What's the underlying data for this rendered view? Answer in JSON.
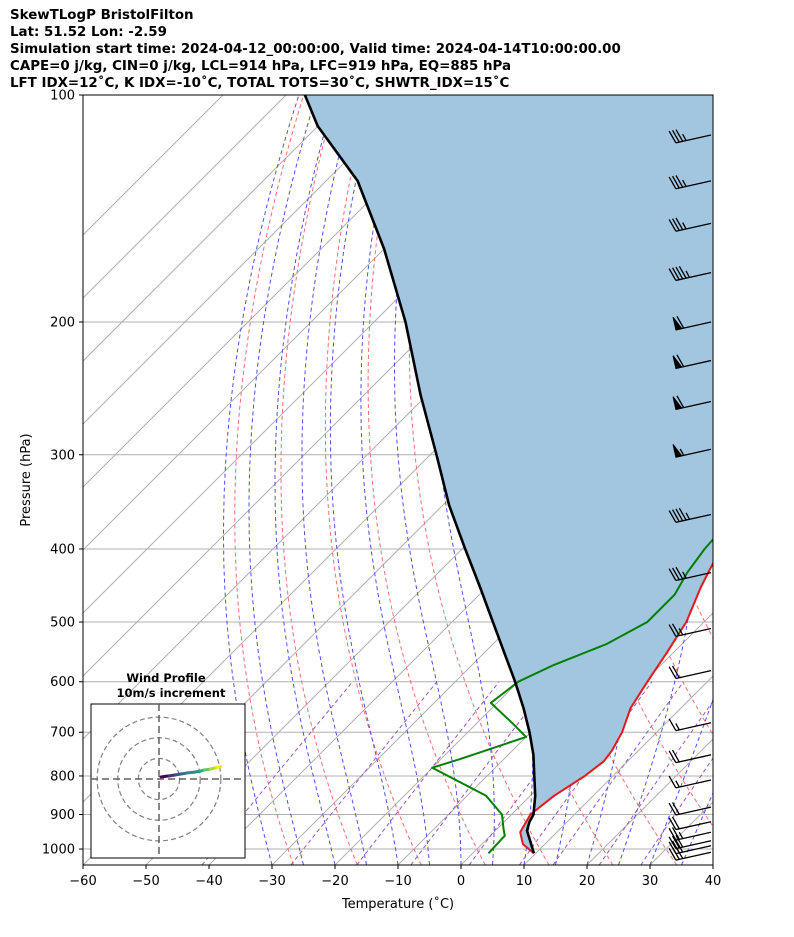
{
  "header": {
    "line1": "SkewTLogP BristolFilton",
    "line2": "Lat: 51.52   Lon: -2.59",
    "line3": "Simulation start time: 2024-04-12_00:00:00, Valid time: 2024-04-14T10:00:00.00",
    "line4": "CAPE=0 j/kg, CIN=0 j/kg, LCL=914 hPa, LFC=919 hPa, EQ=885 hPa",
    "line5": "LFT IDX=12˚C, K IDX=-10˚C, TOTAL TOTS=30˚C, SHWTR_IDX=15˚C"
  },
  "chart_data": {
    "type": "line",
    "xlabel": "Temperature (˚C)",
    "ylabel": "Pressure (hPa)",
    "xlim": [
      -60,
      40
    ],
    "ylim": [
      1050,
      100
    ],
    "yscale": "log",
    "skew": true,
    "grid": true,
    "xticks": [
      -60,
      -50,
      -40,
      -30,
      -20,
      -10,
      0,
      10,
      20,
      30,
      40
    ],
    "yticks": [
      100,
      200,
      300,
      400,
      500,
      600,
      700,
      800,
      900,
      1000
    ],
    "colors": {
      "temperature": "#e31a1c",
      "dewpoint": "#008000",
      "parcel": "#000000",
      "shade": "#a3c6e0",
      "dry_adiabat": "#f07070",
      "moist_adiabat": "#5050f0",
      "isotherm": "#b0b0b0",
      "mixing_ratio": "#9955cc"
    },
    "series": [
      {
        "key": "temperature",
        "points": [
          [
            9.7,
            1013
          ],
          [
            6.5,
            985
          ],
          [
            4.2,
            950
          ],
          [
            3.0,
            900
          ],
          [
            3.8,
            850
          ],
          [
            5.5,
            800
          ],
          [
            6.2,
            765
          ],
          [
            5.8,
            740
          ],
          [
            4.5,
            700
          ],
          [
            2.0,
            650
          ],
          [
            0.5,
            600
          ],
          [
            -1.0,
            550
          ],
          [
            -2.8,
            500
          ],
          [
            -6.0,
            450
          ],
          [
            -9.0,
            400
          ],
          [
            -9.5,
            370
          ],
          [
            -10.7,
            330
          ],
          [
            -12.5,
            290
          ],
          [
            -12.8,
            270
          ],
          [
            -11.0,
            256
          ],
          [
            -9.0,
            240
          ],
          [
            -9.3,
            228
          ],
          [
            -7.0,
            215
          ],
          [
            -4.5,
            200
          ],
          [
            -0.5,
            185
          ],
          [
            2.5,
            170
          ],
          [
            5.5,
            155
          ],
          [
            8.5,
            140
          ],
          [
            10.3,
            130
          ],
          [
            11.5,
            120
          ],
          [
            14.0,
            112
          ],
          [
            16.2,
            104
          ],
          [
            16.8,
            100
          ]
        ]
      },
      {
        "key": "dewpoint",
        "points": [
          [
            2.5,
            1013
          ],
          [
            2.3,
            960
          ],
          [
            1.0,
            940
          ],
          [
            -1.5,
            900
          ],
          [
            -7.0,
            850
          ],
          [
            -20.0,
            780
          ],
          [
            -17.0,
            760
          ],
          [
            -10.0,
            710
          ],
          [
            -14.5,
            680
          ],
          [
            -21.0,
            640
          ],
          [
            -20.0,
            600
          ],
          [
            -17.0,
            570
          ],
          [
            -12.0,
            535
          ],
          [
            -9.0,
            500
          ],
          [
            -9.0,
            460
          ],
          [
            -10.5,
            430
          ],
          [
            -11.5,
            400
          ],
          [
            -12.0,
            370
          ],
          [
            -13.0,
            340
          ],
          [
            -15.0,
            300
          ],
          [
            -16.0,
            275
          ],
          [
            -17.0,
            260
          ],
          [
            -19.5,
            248
          ],
          [
            -21.0,
            235
          ],
          [
            -21.5,
            228
          ],
          [
            -21.0,
            218
          ],
          [
            -22.5,
            205
          ],
          [
            -24.0,
            195
          ],
          [
            -25.5,
            180
          ],
          [
            -26.0,
            168
          ],
          [
            -24.5,
            160
          ],
          [
            -21.0,
            148
          ],
          [
            -17.5,
            135
          ],
          [
            -14.0,
            122
          ],
          [
            -10.5,
            112
          ],
          [
            -7.5,
            105
          ],
          [
            -5.5,
            100
          ]
        ]
      },
      {
        "key": "parcel",
        "points": [
          [
            9.7,
            1013
          ],
          [
            5.0,
            945
          ],
          [
            4.0,
            920
          ],
          [
            3.5,
            900
          ],
          [
            0.8,
            850
          ],
          [
            -2.5,
            800
          ],
          [
            -6.0,
            750
          ],
          [
            -10.2,
            700
          ],
          [
            -15.0,
            650
          ],
          [
            -20.5,
            600
          ],
          [
            -26.7,
            550
          ],
          [
            -33.5,
            500
          ],
          [
            -41.0,
            450
          ],
          [
            -49.5,
            400
          ],
          [
            -59.0,
            350
          ],
          [
            -69.0,
            300
          ],
          [
            -81.0,
            250
          ],
          [
            -95.0,
            200
          ],
          [
            -110.0,
            160
          ],
          [
            -125.0,
            130
          ],
          [
            -140.0,
            110
          ],
          [
            -147.0,
            100
          ]
        ]
      }
    ],
    "wind_barbs": [
      {
        "pressure": 1010,
        "speed_kt": 30
      },
      {
        "pressure": 990,
        "speed_kt": 30
      },
      {
        "pressure": 975,
        "speed_kt": 30
      },
      {
        "pressure": 950,
        "speed_kt": 25
      },
      {
        "pressure": 920,
        "speed_kt": 20
      },
      {
        "pressure": 880,
        "speed_kt": 20
      },
      {
        "pressure": 810,
        "speed_kt": 15
      },
      {
        "pressure": 750,
        "speed_kt": 20
      },
      {
        "pressure": 680,
        "speed_kt": 15
      },
      {
        "pressure": 580,
        "speed_kt": 20
      },
      {
        "pressure": 510,
        "speed_kt": 25
      },
      {
        "pressure": 430,
        "speed_kt": 35
      },
      {
        "pressure": 360,
        "speed_kt": 45
      },
      {
        "pressure": 295,
        "speed_kt": 55
      },
      {
        "pressure": 255,
        "speed_kt": 60
      },
      {
        "pressure": 225,
        "speed_kt": 60
      },
      {
        "pressure": 200,
        "speed_kt": 60
      },
      {
        "pressure": 172,
        "speed_kt": 45
      },
      {
        "pressure": 148,
        "speed_kt": 35
      },
      {
        "pressure": 130,
        "speed_kt": 35
      },
      {
        "pressure": 113,
        "speed_kt": 35
      }
    ],
    "hodograph": {
      "title": "Wind Profile",
      "subtitle": "10m/s increment",
      "rings_ms": [
        10,
        20,
        30
      ],
      "range_ms": 31,
      "points": [
        [
          1,
          1
        ],
        [
          3,
          1.3
        ],
        [
          5,
          1.5
        ],
        [
          8,
          2.0
        ],
        [
          11,
          2.5
        ],
        [
          14,
          3.0
        ],
        [
          17,
          3.3
        ],
        [
          20,
          3.8
        ],
        [
          22,
          4.4
        ],
        [
          25,
          4.8
        ],
        [
          28,
          5.6
        ],
        [
          30,
          6.0
        ]
      ]
    }
  }
}
